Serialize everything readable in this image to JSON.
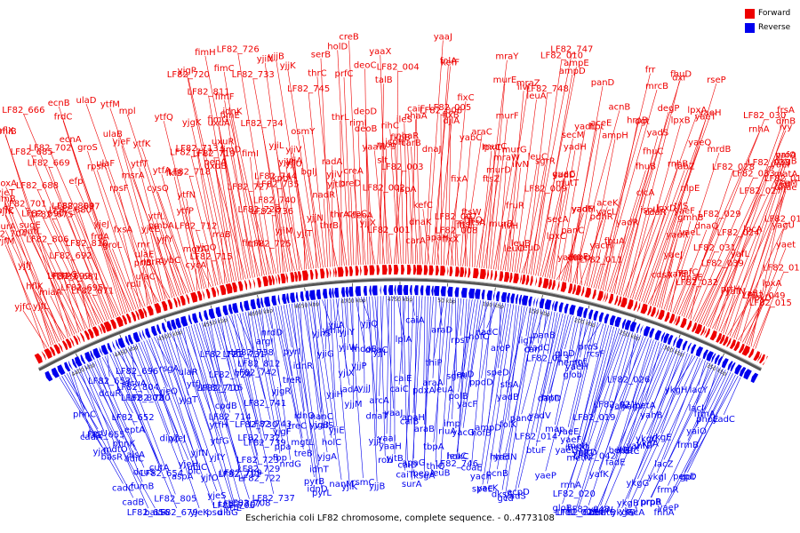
{
  "legend": [
    {
      "label": "Forward",
      "color": "#ee0000"
    },
    {
      "label": "Reverse",
      "color": "#0000ee"
    }
  ],
  "caption": "Escherichia coli LF82 chromosome, complete sequence. - 0..4773108",
  "ticks": [
    "4400 kbp",
    "4450 kbp",
    "4500 kbp",
    "4550 kbp",
    "4600 kbp",
    "4650 kbp",
    "4700 kbp",
    "4750 kbp",
    "50 kbp",
    "100 kbp",
    "150 kbp",
    "200 kbp",
    "250 kbp",
    "300 kbp",
    "350 kbp"
  ],
  "forward_labels": [
    "LF82_704",
    "yjfC",
    "yjfM",
    "yjfL",
    "yjfK",
    "yjfJ",
    "rlmB",
    "purA",
    "yjeT",
    "hflC",
    "hflK",
    "hflX",
    "miaA",
    "amiB",
    "mutL",
    "poxA",
    "ampC",
    "sugE",
    "LF82_701",
    "LF82_699",
    "LF82_806",
    "LF82_695",
    "LF82_692",
    "LF82_690",
    "LF82_688",
    "LF82_685",
    "LF82_681",
    "LF82_675",
    "LF82_671",
    "LF82_669",
    "LF82_666",
    "LF82_680",
    "LF82_697",
    "LF82_809",
    "LF82_810",
    "LF82_702",
    "frdA",
    "frdC",
    "ecnB",
    "ecnA",
    "efp",
    "yjeJ",
    "groL",
    "groS",
    "fxsA",
    "rplI",
    "rpsR",
    "priB",
    "rpsF",
    "ulaF",
    "ulaE",
    "ulaD",
    "ulaC",
    "ulaB",
    "yjeF",
    "yjeE",
    "rnr",
    "nsrR",
    "ytfT",
    "ytfM",
    "msrA",
    "ytfL",
    "cybC",
    "pmbA",
    "mpl",
    "yjfY",
    "ytfK",
    "cysQ",
    "ytfA",
    "cycA",
    "fklB",
    "ytfN",
    "ytfQ",
    "ytfP",
    "yjgQ",
    "mgtA",
    "LF82_712",
    "LF82_715",
    "LF82_718",
    "LF82_713",
    "LF82_717",
    "rraB",
    "yjgK",
    "yjgP",
    "pepA",
    "LF82_720",
    "LF82_719",
    "LF82_811",
    "uxuR",
    "uxuA",
    "uxuB",
    "fimH",
    "fimG",
    "fimF",
    "fimD",
    "fimC",
    "fimA",
    "fimI",
    "fimE",
    "idnK",
    "LF82_728",
    "LF82_727",
    "LF82_726",
    "LF82_725",
    "LF82_736",
    "LF82_740",
    "LF82_735",
    "LF82_734",
    "LF82_733",
    "LF82_744",
    "yjiN",
    "yjiM",
    "yjiL",
    "yjiP",
    "kptA",
    "yjiT",
    "yjiV",
    "yjjB",
    "yjjA",
    "yjjU",
    "yjjN",
    "yjjK",
    "osmY",
    "bglJ",
    "LF82_745",
    "nadR",
    "serB",
    "radA",
    "thrC",
    "thrB",
    "thrA",
    "thrL",
    "yjtD",
    "yjiV",
    "holD",
    "prfC",
    "creD",
    "creC",
    "creB",
    "creA",
    "rimI",
    "deoA",
    "deoC",
    "deoB",
    "deoD",
    "yjjX",
    "slt",
    "talB",
    "mog",
    "yaaW",
    "yaaX",
    "LF82_002",
    "LF82_001",
    "LF82_003",
    "LF82_004",
    "rihC",
    "ispH",
    "fkpB",
    "lspA",
    "ileS",
    "nhaA",
    "nhaR",
    "carA",
    "carB",
    "caiF",
    "dnaK",
    "dnaJ",
    "yaaJ",
    "kefC",
    "kefF",
    "folA",
    "djlA",
    "apaH",
    "LF82_006",
    "LF82_005",
    "fixA",
    "fixB",
    "fixC",
    "fixX",
    "LF82_007",
    "LF82_008",
    "yabC",
    "araC",
    "ftsI",
    "ftsL",
    "ftsW",
    "ftsQ",
    "ftsA",
    "ftsZ",
    "lpxC",
    "mraY",
    "murD",
    "murC",
    "murE",
    "murF",
    "murG",
    "murB",
    "mraW",
    "mraZ",
    "fruR",
    "ilvH",
    "ilvI",
    "ilvN",
    "leuO",
    "leuA",
    "leuB",
    "leuC",
    "leuD",
    "sgrR",
    "LF82_748",
    "LF82_747",
    "LF82_010",
    "LF82_009",
    "ampE",
    "ampD",
    "guaC",
    "secA",
    "secM",
    "mutT",
    "lpxC",
    "yadD",
    "yadH",
    "yadK",
    "yadL",
    "yadM",
    "yadE",
    "hpt",
    "panD",
    "panC",
    "acnB",
    "aceE",
    "aceF",
    "aceK",
    "cueO",
    "pdhR",
    "ampH",
    "yacL",
    "yacH",
    "LF82_011",
    "dgt",
    "frr",
    "mrcB",
    "hrpB",
    "fhuA",
    "fhuB",
    "fhuC",
    "fhuD",
    "yadR",
    "yadS",
    "degP",
    "clcA",
    "cdaR",
    "dxr",
    "ispU",
    "lpxA",
    "lpxB",
    "lpxD",
    "fabZ",
    "rnhB",
    "yaeT",
    "yaeH",
    "yaeQ",
    "cdsA",
    "rseP",
    "nlpE",
    "tilS",
    "yaeF",
    "yaeR",
    "yaeJ",
    "yaeL",
    "gmhB",
    "mrdB",
    "yafE",
    "yafC",
    "dnaQ",
    "dnaE",
    "rnhA",
    "LF82_029",
    "LF82_028",
    "LF82_030",
    "LF82_031",
    "LF82_032",
    "LF82_033",
    "LF82_039",
    "LF82_023",
    "LF82_024",
    "LF82_027",
    "ivy",
    "lpcA",
    "yaeI",
    "frsA",
    "prtH",
    "dinB",
    "yafL",
    "proA",
    "crl",
    "yafN",
    "yafO",
    "yafU",
    "dkgB",
    "yagU",
    "ykgM",
    "matA",
    "LF82_049",
    "dnae",
    "lpxA",
    "lpxD",
    "yaet",
    "LF82_018",
    "LF82_017",
    "LF82_016",
    "LF82_015"
  ],
  "reverse_labels": [
    "yjdL",
    "cadC",
    "lysU",
    "cadB",
    "cadA",
    "phnC",
    "LF82_655",
    "basS",
    "basR",
    "mdtO",
    "LF82_656",
    "adiC",
    "phnK",
    "alsA",
    "fumB",
    "dcuS",
    "dcuR",
    "LF82_652",
    "eptA",
    "LF82_653",
    "LF82_654",
    "LF82_679",
    "cutA",
    "LF82_804",
    "LF82_805",
    "LF82_802",
    "LF82_696",
    "LF82_700",
    "dcuA",
    "aspA",
    "dipZ",
    "yjeH",
    "yjeJ",
    "yjeK",
    "yjeQ",
    "blc",
    "psd",
    "rsgA",
    "ubiC",
    "yjeS",
    "yjfN",
    "yjfO",
    "ulaG",
    "ulaR",
    "yjgT",
    "yjfY",
    "ytfE",
    "ytfG",
    "ytfJ",
    "ytfH",
    "LF82_706",
    "LF82_707",
    "LF82_708",
    "LF82_709",
    "LF82_710",
    "LF82_711",
    "cpdB",
    "LF82_714",
    "LF82_716",
    "LF82_721",
    "LF82_722",
    "LF82_723",
    "LF82_724",
    "LF82_729",
    "LF82_730",
    "LF82_731",
    "LF82_732",
    "LF82_737",
    "LF82_738",
    "LF82_739",
    "LF82_741",
    "LF82_743",
    "LF82_742",
    "LF82_812",
    "fbp",
    "ppa",
    "yjgF",
    "argI",
    "yjgR",
    "nrdD",
    "nrdG",
    "treC",
    "treB",
    "treR",
    "mgtL",
    "pyrI",
    "pyrB",
    "pyrL",
    "idnO",
    "idnD",
    "idnT",
    "idnR",
    "yjgA",
    "yjgB",
    "valS",
    "holC",
    "nanC",
    "nanM",
    "yjhS",
    "yjhT",
    "yjiE",
    "yjiG",
    "yjiH",
    "yjiK",
    "iadA",
    "yjiA",
    "yjiX",
    "yjiY",
    "yjiW",
    "rsmC",
    "yjjM",
    "mdoB",
    "yjjP",
    "yjjQ",
    "yjjJ",
    "dnaT",
    "yjjB",
    "dnaC",
    "yjjI",
    "yjjL",
    "rob",
    "arcA",
    "yaaJ",
    "yaaI",
    "yaaH",
    "yjtB",
    "lplA",
    "caiE",
    "caiD",
    "caiC",
    "caiB",
    "caiA",
    "caiT",
    "apaG",
    "apaH",
    "surA",
    "pdxA",
    "ksgA",
    "hepA",
    "araB",
    "araA",
    "araD",
    "thiQ",
    "thiP",
    "tbpA",
    "leuA",
    "leuB",
    "sgrR",
    "imp",
    "rluA",
    "rpsT",
    "hokC",
    "LF82_746",
    "polB",
    "leuD",
    "leuC",
    "yacG",
    "yacF",
    "coaE",
    "hofC",
    "hofB",
    "ppdD",
    "nadC",
    "aroP",
    "ampD",
    "yach",
    "speD",
    "speE",
    "yacK",
    "yadB",
    "htrE",
    "folK",
    "pcnB",
    "sfsA",
    "ligT",
    "dksA",
    "gcd",
    "yadN",
    "yadC",
    "can",
    "panB",
    "panC",
    "yadS",
    "LF82_013",
    "LF82_014",
    "ecpD",
    "yadV",
    "btuF",
    "mtn",
    "dapD",
    "glnD",
    "map",
    "hemL",
    "yaeH",
    "yaeP",
    "rof",
    "glob",
    "yaeE",
    "yaeD",
    "yaeF",
    "proS",
    "rcsF",
    "metQ",
    "metI",
    "metN",
    "yafC",
    "mltD",
    "rnhA",
    "gloB",
    "LF82_019",
    "LF82_020",
    "LF82_022",
    "LF82_021",
    "LF82_026",
    "LF82_025",
    "LF82_042",
    "LF82_043",
    "yafV",
    "yafK",
    "fadE",
    "yagV",
    "yagW",
    "yagX",
    "betA",
    "betB",
    "betI",
    "matC",
    "matB",
    "yahB",
    "yahN",
    "ykgA",
    "ykgB",
    "ykgC",
    "ykgE",
    "ykgF",
    "ykgG",
    "ykgH",
    "ykgl",
    "ykgI",
    "lacA",
    "lacY",
    "lacZ",
    "lacI",
    "prpR",
    "prpB",
    "frmA",
    "frmB",
    "frmR",
    "yaiO",
    "phoE",
    "pepD",
    "fhhA",
    "gpt",
    "yaeP",
    "yadC"
  ]
}
